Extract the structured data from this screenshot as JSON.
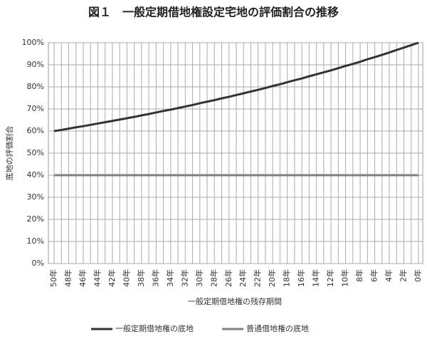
{
  "chart_data": {
    "type": "line",
    "title": "図１　一般定期借地権設定宅地の評価割合の推移",
    "y_label": "底地の評価割合",
    "x_label": "一般定期借地権の残存期間",
    "categories": [
      "50年",
      null,
      "48年",
      null,
      "46年",
      null,
      "44年",
      null,
      "42年",
      null,
      "40年",
      null,
      "38年",
      null,
      "36年",
      null,
      "34年",
      null,
      "32年",
      null,
      "30年",
      null,
      "28年",
      null,
      "26年",
      null,
      "24年",
      null,
      "22年",
      null,
      "20年",
      null,
      "18年",
      null,
      "16年",
      null,
      "14年",
      null,
      "12年",
      null,
      "10年",
      null,
      "8年",
      null,
      "6年",
      null,
      "4年",
      null,
      "2年",
      null,
      "0年"
    ],
    "series": [
      {
        "name": "一般定期借地権の底地",
        "color": "#333333",
        "values": [
          60.0,
          60.5,
          61.1,
          61.7,
          62.2,
          62.8,
          63.4,
          64.0,
          64.6,
          65.2,
          65.8,
          66.4,
          67.1,
          67.7,
          68.4,
          69.1,
          69.7,
          70.4,
          71.1,
          71.8,
          72.6,
          73.3,
          74.0,
          74.8,
          75.5,
          76.3,
          77.1,
          77.9,
          78.7,
          79.5,
          80.4,
          81.2,
          82.1,
          83.0,
          83.8,
          84.8,
          85.7,
          86.6,
          87.5,
          88.5,
          89.5,
          90.4,
          91.4,
          92.5,
          93.5,
          94.5,
          95.6,
          96.7,
          97.8,
          98.9,
          100.0
        ]
      },
      {
        "name": "普通借地権の底地",
        "color": "#7f7f7f",
        "values": [
          40,
          40,
          40,
          40,
          40,
          40,
          40,
          40,
          40,
          40,
          40,
          40,
          40,
          40,
          40,
          40,
          40,
          40,
          40,
          40,
          40,
          40,
          40,
          40,
          40,
          40,
          40,
          40,
          40,
          40,
          40,
          40,
          40,
          40,
          40,
          40,
          40,
          40,
          40,
          40,
          40,
          40,
          40,
          40,
          40,
          40,
          40,
          40,
          40,
          40,
          40
        ]
      }
    ],
    "ylim": [
      0,
      100
    ],
    "yticks": [
      {
        "value": 0,
        "label": "0%"
      },
      {
        "value": 10,
        "label": "10%"
      },
      {
        "value": 20,
        "label": "20%"
      },
      {
        "value": 30,
        "label": "30%"
      },
      {
        "value": 40,
        "label": "40%"
      },
      {
        "value": 50,
        "label": "50%"
      },
      {
        "value": 60,
        "label": "60%"
      },
      {
        "value": 70,
        "label": "70%"
      },
      {
        "value": 80,
        "label": "80%"
      },
      {
        "value": 90,
        "label": "90%"
      },
      {
        "value": 100,
        "label": "100%"
      }
    ],
    "grid": true,
    "legend": "bottom"
  }
}
